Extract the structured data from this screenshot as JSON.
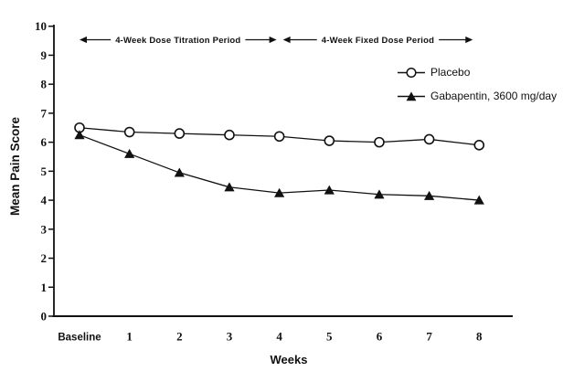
{
  "figure": {
    "background": "#ffffff",
    "ink": "#111111"
  },
  "chart_data": {
    "type": "line",
    "title": "",
    "xlabel": "Weeks",
    "ylabel": "Mean Pain Score",
    "ylim": [
      0,
      10
    ],
    "yticks": [
      0,
      1,
      2,
      3,
      4,
      5,
      6,
      7,
      8,
      9,
      10
    ],
    "grid": false,
    "categories": [
      "Baseline",
      "1",
      "2",
      "3",
      "4",
      "5",
      "6",
      "7",
      "8"
    ],
    "series": [
      {
        "name": "Placebo",
        "marker": "circle-open",
        "values": [
          6.5,
          6.35,
          6.3,
          6.25,
          6.2,
          6.05,
          6.0,
          6.1,
          5.9
        ]
      },
      {
        "name": "Gabapentin, 3600 mg/day",
        "marker": "triangle-filled",
        "values": [
          6.25,
          5.6,
          4.95,
          4.45,
          4.25,
          4.35,
          4.2,
          4.15,
          4.0
        ]
      }
    ],
    "annotations": [
      {
        "label": "4-Week Dose Titration Period",
        "from_index": 0,
        "to_index": 4
      },
      {
        "label": "4-Week Fixed Dose Period",
        "from_index": 4,
        "to_index": 8
      }
    ],
    "legend": {
      "position": "upper-right",
      "items": [
        "Placebo",
        "Gabapentin, 3600 mg/day"
      ]
    }
  }
}
